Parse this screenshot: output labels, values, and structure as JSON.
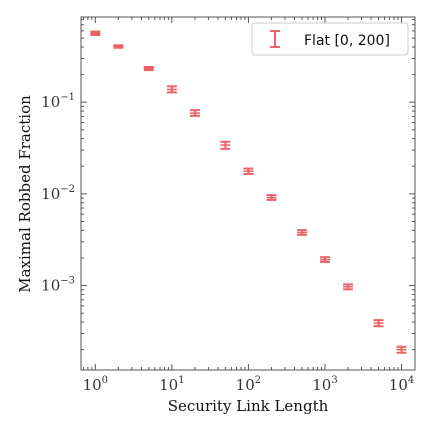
{
  "chart_data": {
    "type": "scatter",
    "xscale": "log",
    "yscale": "log",
    "xlabel": "Security Link Length",
    "ylabel": "Maximal Robbed Fraction",
    "xlim": [
      0.65,
      15000
    ],
    "ylim": [
      0.00012,
      0.85
    ],
    "grid": false,
    "legend_position": "top-right",
    "x_ticks": [
      {
        "value": 1,
        "base": "10",
        "exp": "0"
      },
      {
        "value": 10,
        "base": "10",
        "exp": "1"
      },
      {
        "value": 100,
        "base": "10",
        "exp": "2"
      },
      {
        "value": 1000,
        "base": "10",
        "exp": "3"
      },
      {
        "value": 10000,
        "base": "10",
        "exp": "4"
      }
    ],
    "y_ticks": [
      {
        "value": 0.001,
        "base": "10",
        "exp": "−3"
      },
      {
        "value": 0.01,
        "base": "10",
        "exp": "−2"
      },
      {
        "value": 0.1,
        "base": "10",
        "exp": "−1"
      }
    ],
    "series": [
      {
        "name": "Flat [0, 200]",
        "color": "#e8474c",
        "x": [
          1,
          2,
          5,
          10,
          20,
          50,
          100,
          200,
          500,
          1000,
          2000,
          5000,
          10000
        ],
        "y": [
          0.565,
          0.405,
          0.232,
          0.138,
          0.076,
          0.034,
          0.0177,
          0.0091,
          0.0038,
          0.00192,
          0.00097,
          0.00039,
          0.0002
        ],
        "err_low": [
          0.541,
          0.393,
          0.224,
          0.128,
          0.071,
          0.031,
          0.0165,
          0.0086,
          0.00358,
          0.00181,
          0.00091,
          0.00036,
          0.000185
        ],
        "err_high": [
          0.59,
          0.418,
          0.242,
          0.149,
          0.082,
          0.037,
          0.0189,
          0.0097,
          0.00403,
          0.00204,
          0.00103,
          0.00042,
          0.000215
        ]
      }
    ]
  }
}
